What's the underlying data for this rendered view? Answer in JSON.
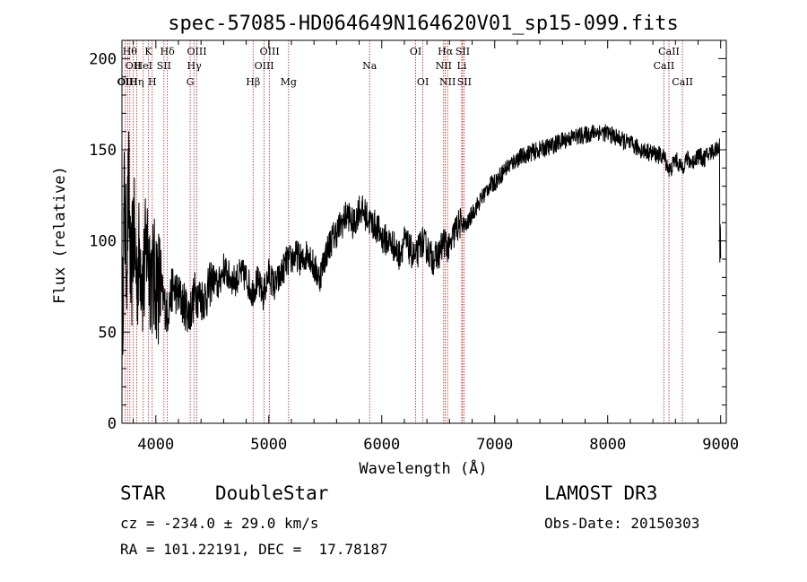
{
  "chart_data": {
    "type": "line",
    "title": "spec-57085-HD064649N164620V01_sp15-099.fits",
    "xlabel": "Wavelength (Å)",
    "ylabel": "Flux (relative)",
    "xlim": [
      3700,
      9050
    ],
    "ylim": [
      0,
      210
    ],
    "x_ticks": [
      4000,
      5000,
      6000,
      7000,
      8000,
      9000
    ],
    "y_ticks": [
      0,
      50,
      100,
      150,
      200
    ],
    "grid": false,
    "series": [
      {
        "x": [
          3700,
          3720,
          3740,
          3760,
          3780,
          3800,
          3830,
          3860,
          3890,
          3920,
          3950,
          3980,
          4000,
          4050,
          4100,
          4150,
          4200,
          4250,
          4300,
          4350,
          4400,
          4450,
          4500,
          4550,
          4600,
          4650,
          4700,
          4750,
          4800,
          4850,
          4900,
          4950,
          5000,
          5050,
          5100,
          5150,
          5200,
          5250,
          5300,
          5350,
          5400,
          5450,
          5500,
          5550,
          5600,
          5650,
          5700,
          5750,
          5800,
          5850,
          5900,
          5950,
          6000,
          6050,
          6100,
          6150,
          6200,
          6250,
          6300,
          6350,
          6400,
          6450,
          6500,
          6550,
          6600,
          6650,
          6700,
          6750,
          6800,
          6850,
          6900,
          6950,
          7000,
          7100,
          7200,
          7300,
          7400,
          7500,
          7600,
          7700,
          7800,
          7900,
          8000,
          8100,
          8200,
          8300,
          8400,
          8500,
          8550,
          8600,
          8650,
          8700,
          8750,
          8800,
          8850,
          8900,
          8950,
          8990,
          9000
        ],
        "y": [
          40,
          120,
          90,
          130,
          70,
          110,
          80,
          95,
          75,
          100,
          85,
          78,
          80,
          72,
          60,
          75,
          70,
          65,
          60,
          72,
          68,
          70,
          80,
          75,
          85,
          80,
          78,
          82,
          80,
          72,
          78,
          70,
          82,
          75,
          80,
          88,
          90,
          92,
          88,
          95,
          85,
          80,
          92,
          100,
          105,
          110,
          115,
          108,
          118,
          115,
          110,
          108,
          102,
          100,
          98,
          92,
          100,
          95,
          90,
          100,
          96,
          90,
          92,
          100,
          95,
          106,
          110,
          108,
          115,
          120,
          125,
          130,
          132,
          140,
          145,
          148,
          150,
          152,
          155,
          157,
          158,
          160,
          159,
          156,
          153,
          150,
          148,
          146,
          138,
          145,
          140,
          145,
          143,
          147,
          145,
          148,
          150,
          152,
          155
        ]
      }
    ],
    "lines": [
      {
        "x": 3727,
        "label": "OII",
        "row": 3
      },
      {
        "x": 3750,
        "label": "OIII",
        "row": 3
      },
      {
        "x": 3770,
        "label": "Hθ",
        "row": 1
      },
      {
        "x": 3800,
        "label": "OII",
        "row": 2
      },
      {
        "x": 3830,
        "label": "Hη",
        "row": 3
      },
      {
        "x": 3889,
        "label": "HeI",
        "row": 2
      },
      {
        "x": 3934,
        "label": "K",
        "row": 1
      },
      {
        "x": 3968,
        "label": "H",
        "row": 3
      },
      {
        "x": 4072,
        "label": "SII",
        "row": 2
      },
      {
        "x": 4102,
        "label": "Hδ",
        "row": 1
      },
      {
        "x": 4304,
        "label": "G",
        "row": 3
      },
      {
        "x": 4340,
        "label": "Hγ",
        "row": 2
      },
      {
        "x": 4363,
        "label": "OIII",
        "row": 1
      },
      {
        "x": 4861,
        "label": "Hβ",
        "row": 3
      },
      {
        "x": 4959,
        "label": "OIII",
        "row": 2
      },
      {
        "x": 5007,
        "label": "OIII",
        "row": 1
      },
      {
        "x": 5175,
        "label": "Mg",
        "row": 3
      },
      {
        "x": 5893,
        "label": "Na",
        "row": 2
      },
      {
        "x": 6300,
        "label": "OI",
        "row": 1
      },
      {
        "x": 6364,
        "label": "OI",
        "row": 3
      },
      {
        "x": 6548,
        "label": "NII",
        "row": 2
      },
      {
        "x": 6563,
        "label": "Hα",
        "row": 1
      },
      {
        "x": 6583,
        "label": "NII",
        "row": 3
      },
      {
        "x": 6708,
        "label": "Li",
        "row": 2
      },
      {
        "x": 6716,
        "label": "SII",
        "row": 1
      },
      {
        "x": 6731,
        "label": "SII",
        "row": 3
      },
      {
        "x": 8498,
        "label": "CaII",
        "row": 2
      },
      {
        "x": 8542,
        "label": "CaII",
        "row": 1
      },
      {
        "x": 8662,
        "label": "CaII",
        "row": 3
      }
    ]
  },
  "info": {
    "class": "STAR",
    "subclass": "DoubleStar",
    "survey": "LAMOST DR3",
    "cz": "cz = -234.0 ± 29.0 km/s",
    "obs_date": "Obs-Date: 20150303",
    "radec": "RA = 101.22191, DEC =  17.78187"
  },
  "colors": {
    "spectrum": "#000000",
    "line_markers": "#b22222",
    "axis": "#000000"
  }
}
